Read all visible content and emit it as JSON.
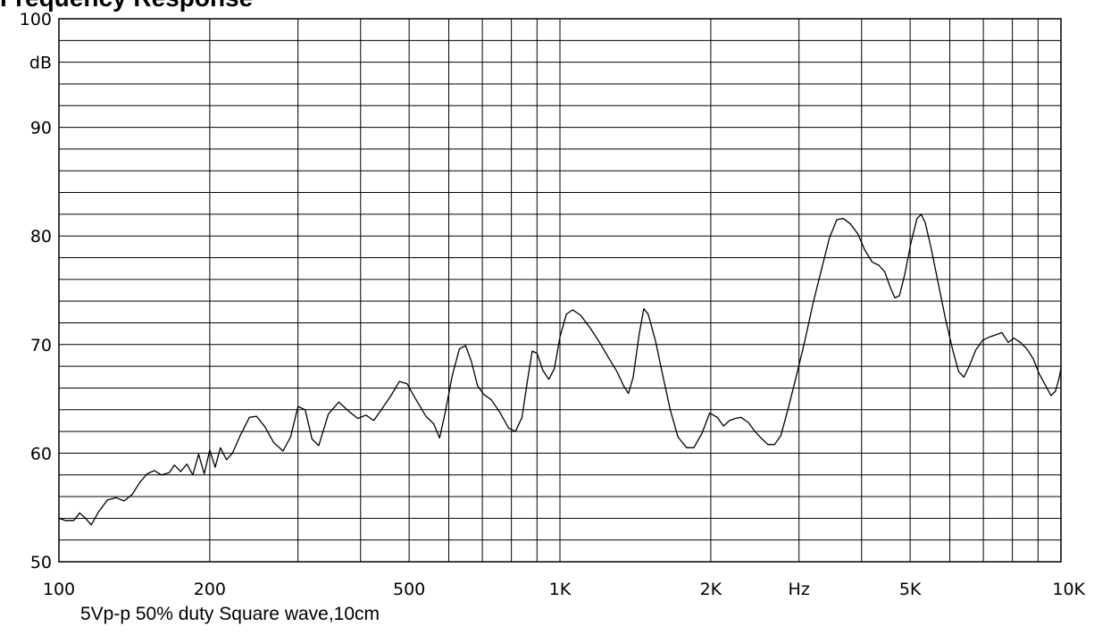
{
  "chart_data": {
    "type": "line",
    "title": "Frequency Response",
    "caption": "5Vp-p 50% duty Square wave,10cm",
    "x_scale": "log",
    "xlim": [
      100,
      10000
    ],
    "ylim": [
      50,
      100
    ],
    "grid": true,
    "x_ticks": [
      {
        "value": 100,
        "label": "100"
      },
      {
        "value": 200,
        "label": "200"
      },
      {
        "value": 500,
        "label": "500"
      },
      {
        "value": 1000,
        "label": "1K"
      },
      {
        "value": 2000,
        "label": "2K"
      },
      {
        "value": 3000,
        "label": "Hz"
      },
      {
        "value": 5000,
        "label": "5K"
      },
      {
        "value": 10000,
        "label": "10K"
      }
    ],
    "y_ticks": [
      {
        "value": 100,
        "label": "100"
      },
      {
        "value": 96,
        "label": "dB"
      },
      {
        "value": 90,
        "label": "90"
      },
      {
        "value": 80,
        "label": "80"
      },
      {
        "value": 70,
        "label": "70"
      },
      {
        "value": 60,
        "label": "60"
      },
      {
        "value": 50,
        "label": "50"
      }
    ],
    "series": [
      {
        "color": "#000000",
        "points": [
          [
            100,
            54.0
          ],
          [
            103,
            53.8
          ],
          [
            107,
            53.8
          ],
          [
            110,
            54.5
          ],
          [
            113,
            54.0
          ],
          [
            116,
            53.4
          ],
          [
            120,
            54.6
          ],
          [
            125,
            55.7
          ],
          [
            130,
            55.9
          ],
          [
            135,
            55.6
          ],
          [
            140,
            56.2
          ],
          [
            145,
            57.3
          ],
          [
            150,
            58.1
          ],
          [
            155,
            58.4
          ],
          [
            160,
            58.0
          ],
          [
            166,
            58.2
          ],
          [
            170,
            58.9
          ],
          [
            175,
            58.3
          ],
          [
            180,
            59.0
          ],
          [
            185,
            58.0
          ],
          [
            190,
            59.9
          ],
          [
            195,
            58.1
          ],
          [
            200,
            60.3
          ],
          [
            205,
            58.7
          ],
          [
            210,
            60.5
          ],
          [
            216,
            59.4
          ],
          [
            222,
            60.0
          ],
          [
            230,
            61.6
          ],
          [
            240,
            63.3
          ],
          [
            248,
            63.4
          ],
          [
            258,
            62.4
          ],
          [
            268,
            61.0
          ],
          [
            280,
            60.2
          ],
          [
            290,
            61.5
          ],
          [
            300,
            64.3
          ],
          [
            310,
            64.0
          ],
          [
            320,
            61.3
          ],
          [
            330,
            60.7
          ],
          [
            345,
            63.6
          ],
          [
            362,
            64.7
          ],
          [
            380,
            63.8
          ],
          [
            395,
            63.2
          ],
          [
            410,
            63.5
          ],
          [
            425,
            63.0
          ],
          [
            440,
            64.0
          ],
          [
            460,
            65.3
          ],
          [
            478,
            66.6
          ],
          [
            495,
            66.4
          ],
          [
            515,
            65.0
          ],
          [
            540,
            63.4
          ],
          [
            560,
            62.7
          ],
          [
            575,
            61.4
          ],
          [
            590,
            63.7
          ],
          [
            610,
            67.2
          ],
          [
            630,
            69.6
          ],
          [
            648,
            69.9
          ],
          [
            665,
            68.5
          ],
          [
            685,
            66.2
          ],
          [
            705,
            65.4
          ],
          [
            730,
            64.9
          ],
          [
            760,
            63.7
          ],
          [
            790,
            62.3
          ],
          [
            815,
            62.0
          ],
          [
            840,
            63.3
          ],
          [
            860,
            66.5
          ],
          [
            880,
            69.4
          ],
          [
            900,
            69.2
          ],
          [
            925,
            67.6
          ],
          [
            950,
            66.8
          ],
          [
            975,
            67.8
          ],
          [
            1000,
            70.7
          ],
          [
            1030,
            72.8
          ],
          [
            1060,
            73.2
          ],
          [
            1100,
            72.7
          ],
          [
            1150,
            71.5
          ],
          [
            1200,
            70.2
          ],
          [
            1250,
            68.8
          ],
          [
            1300,
            67.5
          ],
          [
            1340,
            66.2
          ],
          [
            1370,
            65.5
          ],
          [
            1400,
            67.0
          ],
          [
            1440,
            71.0
          ],
          [
            1470,
            73.3
          ],
          [
            1500,
            72.8
          ],
          [
            1550,
            70.4
          ],
          [
            1600,
            67.4
          ],
          [
            1660,
            64.0
          ],
          [
            1720,
            61.5
          ],
          [
            1790,
            60.5
          ],
          [
            1850,
            60.5
          ],
          [
            1920,
            61.8
          ],
          [
            1990,
            63.7
          ],
          [
            2060,
            63.3
          ],
          [
            2120,
            62.5
          ],
          [
            2180,
            63.0
          ],
          [
            2240,
            63.2
          ],
          [
            2300,
            63.3
          ],
          [
            2380,
            62.8
          ],
          [
            2450,
            62.0
          ],
          [
            2520,
            61.4
          ],
          [
            2600,
            60.8
          ],
          [
            2680,
            60.8
          ],
          [
            2760,
            61.6
          ],
          [
            2850,
            64.0
          ],
          [
            2960,
            67.0
          ],
          [
            3080,
            70.3
          ],
          [
            3200,
            73.8
          ],
          [
            3330,
            77.0
          ],
          [
            3450,
            79.8
          ],
          [
            3570,
            81.5
          ],
          [
            3680,
            81.6
          ],
          [
            3800,
            81.1
          ],
          [
            3930,
            80.2
          ],
          [
            4060,
            78.7
          ],
          [
            4200,
            77.6
          ],
          [
            4330,
            77.3
          ],
          [
            4450,
            76.7
          ],
          [
            4560,
            75.3
          ],
          [
            4660,
            74.3
          ],
          [
            4760,
            74.5
          ],
          [
            4880,
            76.5
          ],
          [
            5020,
            79.4
          ],
          [
            5160,
            81.6
          ],
          [
            5260,
            82.0
          ],
          [
            5360,
            81.2
          ],
          [
            5500,
            79.0
          ],
          [
            5680,
            75.8
          ],
          [
            5880,
            72.4
          ],
          [
            6080,
            69.5
          ],
          [
            6250,
            67.5
          ],
          [
            6400,
            67.0
          ],
          [
            6560,
            68.0
          ],
          [
            6760,
            69.5
          ],
          [
            6980,
            70.4
          ],
          [
            7200,
            70.7
          ],
          [
            7420,
            70.9
          ],
          [
            7620,
            71.1
          ],
          [
            7850,
            70.2
          ],
          [
            8050,
            70.6
          ],
          [
            8300,
            70.2
          ],
          [
            8550,
            69.6
          ],
          [
            8800,
            68.7
          ],
          [
            9050,
            67.3
          ],
          [
            9300,
            66.3
          ],
          [
            9550,
            65.3
          ],
          [
            9750,
            65.7
          ],
          [
            9900,
            66.8
          ],
          [
            10000,
            67.8
          ]
        ]
      }
    ]
  }
}
